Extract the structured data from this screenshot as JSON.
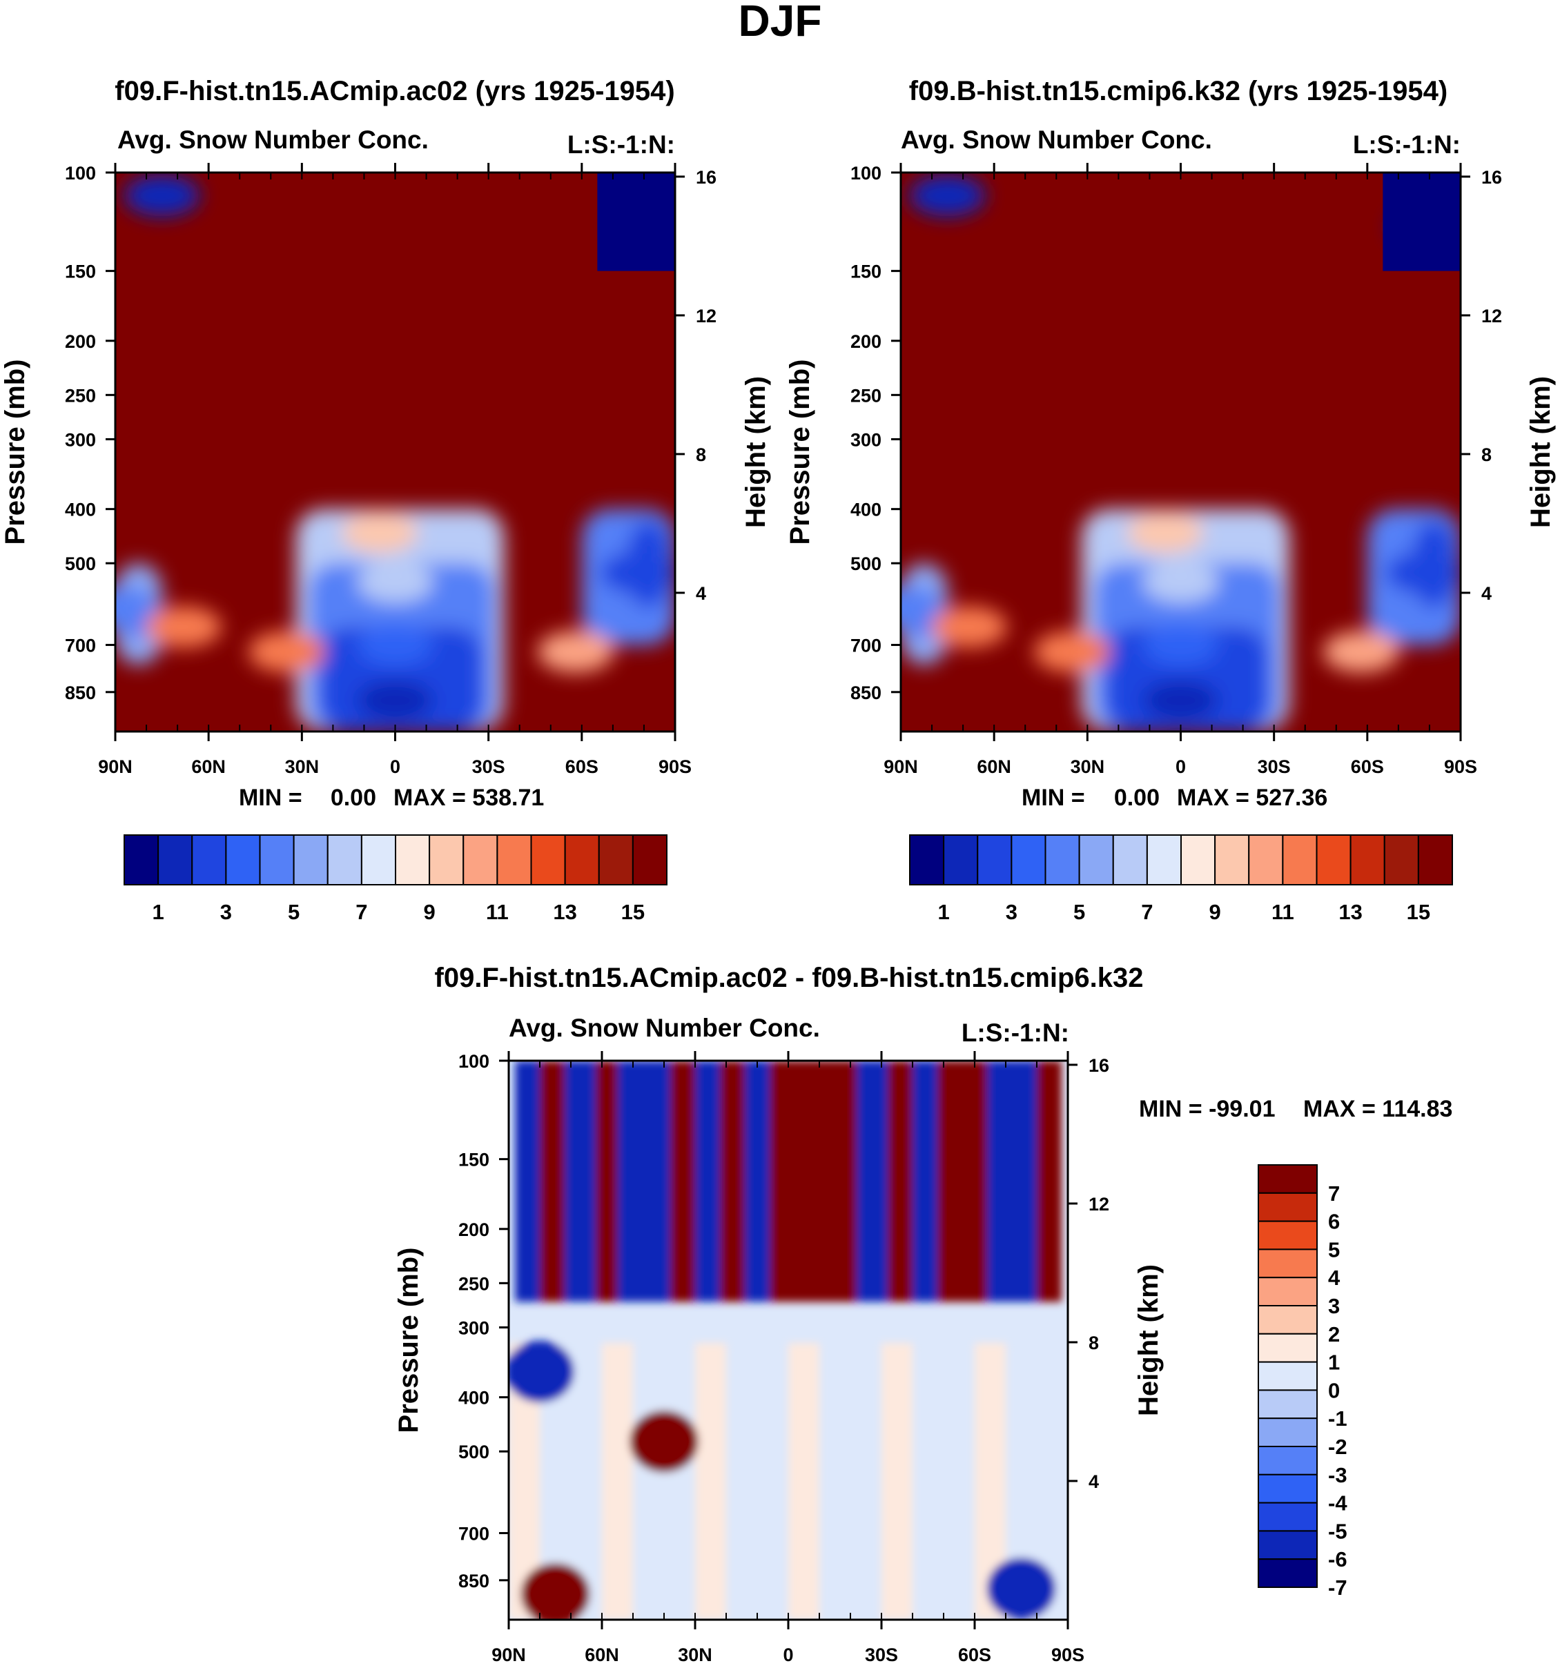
{
  "figure": {
    "title": "DJF"
  },
  "colors": {
    "panel_palette": [
      "#00007f",
      "#0d27b8",
      "#1f45e0",
      "#2f62f5",
      "#5580f7",
      "#8aa8f5",
      "#b8cbf7",
      "#dde8fb",
      "#fde9de",
      "#fcc8ae",
      "#fba383",
      "#f77a4f",
      "#ea4a1c",
      "#c72a0c",
      "#9c1a0a",
      "#7f0000"
    ],
    "diff_palette": [
      "#00007f",
      "#0d27b8",
      "#1f45e0",
      "#2f62f5",
      "#5580f7",
      "#8aa8f5",
      "#b8cbf7",
      "#dde8fb",
      "#fde9de",
      "#fcc8ae",
      "#fba383",
      "#f77a4f",
      "#ea4a1c",
      "#c72a0c",
      "#7f0000"
    ]
  },
  "chart_data": [
    {
      "type": "heatmap",
      "id": "panel-a",
      "title": "f09.F-hist.tn15.ACmip.ac02 (yrs 1925-1954)",
      "left_string": "Avg. Snow Number Conc.",
      "right_string": "L:S:-1:N:",
      "xlabel": "",
      "ylabel": "Pressure (mb)",
      "ylabel_right": "Height (km)",
      "x_ticks": [
        "90N",
        "60N",
        "30N",
        "0",
        "30S",
        "60S",
        "90S"
      ],
      "x_range": [
        90,
        -90
      ],
      "y_ticks": [
        100,
        150,
        200,
        250,
        300,
        400,
        500,
        700,
        850
      ],
      "y_range_mb": [
        100,
        1000
      ],
      "height_ticks": [
        16,
        12,
        8,
        4
      ],
      "min_label": "MIN =",
      "min_value": "0.00",
      "max_label": "MAX = 538.71",
      "colorbar_ticks": [
        "1",
        "3",
        "5",
        "7",
        "9",
        "11",
        "13",
        "15"
      ],
      "colorbar_orientation": "horizontal",
      "field": {
        "background_level": 15,
        "features": [
          {
            "lat": 75,
            "mb": 110,
            "value": 1
          },
          {
            "lat": -82,
            "mb": 125,
            "value": 1
          },
          {
            "lat": 0,
            "mb": 880,
            "value": 1
          },
          {
            "lat": 0,
            "mb": 700,
            "value": 3
          },
          {
            "lat": 0,
            "mb": 540,
            "value": 6
          },
          {
            "lat": 5,
            "mb": 440,
            "value": 9
          },
          {
            "lat": -78,
            "mb": 520,
            "value": 2
          },
          {
            "lat": 88,
            "mb": 600,
            "value": 4
          },
          {
            "lat": 68,
            "mb": 650,
            "value": 11
          },
          {
            "lat": -58,
            "mb": 720,
            "value": 10
          },
          {
            "lat": 35,
            "mb": 720,
            "value": 11
          }
        ]
      }
    },
    {
      "type": "heatmap",
      "id": "panel-b",
      "title": "f09.B-hist.tn15.cmip6.k32 (yrs 1925-1954)",
      "left_string": "Avg. Snow Number Conc.",
      "right_string": "L:S:-1:N:",
      "xlabel": "",
      "ylabel": "Pressure (mb)",
      "ylabel_right": "Height (km)",
      "x_ticks": [
        "90N",
        "60N",
        "30N",
        "0",
        "30S",
        "60S",
        "90S"
      ],
      "x_range": [
        90,
        -90
      ],
      "y_ticks": [
        100,
        150,
        200,
        250,
        300,
        400,
        500,
        700,
        850
      ],
      "y_range_mb": [
        100,
        1000
      ],
      "height_ticks": [
        16,
        12,
        8,
        4
      ],
      "min_label": "MIN =",
      "min_value": "0.00",
      "max_label": "MAX = 527.36",
      "colorbar_ticks": [
        "1",
        "3",
        "5",
        "7",
        "9",
        "11",
        "13",
        "15"
      ],
      "colorbar_orientation": "horizontal",
      "field": {
        "background_level": 15,
        "features": [
          {
            "lat": 75,
            "mb": 110,
            "value": 1
          },
          {
            "lat": -80,
            "mb": 125,
            "value": 1
          },
          {
            "lat": 0,
            "mb": 880,
            "value": 1
          },
          {
            "lat": 0,
            "mb": 700,
            "value": 3
          },
          {
            "lat": 0,
            "mb": 540,
            "value": 6
          },
          {
            "lat": 5,
            "mb": 440,
            "value": 9
          },
          {
            "lat": -78,
            "mb": 520,
            "value": 2
          },
          {
            "lat": 88,
            "mb": 600,
            "value": 4
          },
          {
            "lat": 68,
            "mb": 650,
            "value": 11
          },
          {
            "lat": -58,
            "mb": 720,
            "value": 10
          },
          {
            "lat": 35,
            "mb": 720,
            "value": 11
          }
        ]
      }
    },
    {
      "type": "heatmap",
      "id": "panel-diff",
      "title": "f09.F-hist.tn15.ACmip.ac02 - f09.B-hist.tn15.cmip6.k32",
      "left_string": "Avg. Snow Number Conc.",
      "right_string": "L:S:-1:N:",
      "xlabel": "",
      "ylabel": "Pressure (mb)",
      "ylabel_right": "Height (km)",
      "x_ticks": [
        "90N",
        "60N",
        "30N",
        "0",
        "30S",
        "60S",
        "90S"
      ],
      "x_range": [
        90,
        -90
      ],
      "y_ticks": [
        100,
        150,
        200,
        250,
        300,
        400,
        500,
        700,
        850
      ],
      "y_range_mb": [
        100,
        1000
      ],
      "height_ticks": [
        16,
        12,
        8,
        4
      ],
      "min_label": "MIN = -99.01",
      "max_label": "MAX = 114.83",
      "colorbar_ticks": [
        "7",
        "6",
        "5",
        "4",
        "3",
        "2",
        "1",
        "0",
        "-1",
        "-2",
        "-3",
        "-4",
        "-5",
        "-6",
        "-7"
      ],
      "colorbar_orientation": "vertical",
      "field": {
        "upper_bands_lat": [
          88,
          80,
          72,
          62,
          55,
          46,
          38,
          30,
          22,
          14,
          6,
          -4,
          -14,
          -22,
          -32,
          -40,
          -48,
          -56,
          -64,
          -72,
          -80,
          -88
        ],
        "upper_bands_sign": [
          -1,
          1,
          -1,
          1,
          -1,
          -1,
          1,
          -1,
          1,
          -1,
          1,
          1,
          1,
          -1,
          1,
          -1,
          1,
          1,
          -1,
          -1,
          1,
          1
        ],
        "lower_value": 0,
        "features": [
          {
            "lat": 80,
            "mb": 360,
            "value": -6
          },
          {
            "lat": 40,
            "mb": 480,
            "value": 6
          },
          {
            "lat": 75,
            "mb": 900,
            "value": 7
          },
          {
            "lat": -75,
            "mb": 880,
            "value": -5
          }
        ]
      }
    }
  ]
}
